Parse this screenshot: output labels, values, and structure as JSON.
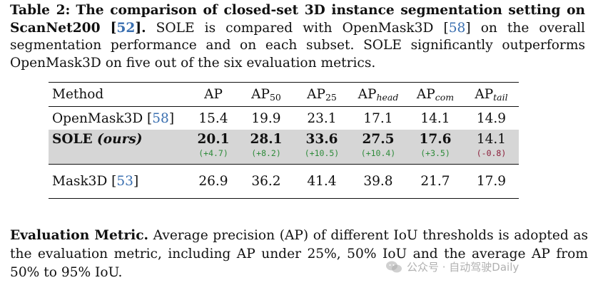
{
  "caption": {
    "label": "Table 2:",
    "title": "The comparison of closed-set 3D instance segmentation setting on ScanNet200",
    "title_cite": "52",
    "text_a": "SOLE is compared with OpenMask3D",
    "text_cite": "58",
    "text_b": "on the overall segmentation performance and on each subset. SOLE significantly outperforms OpenMask3D on five out of the six evaluation metrics."
  },
  "table": {
    "headers": {
      "method": "Method",
      "ap": "AP",
      "ap50_base": "AP",
      "ap50_sub": "50",
      "ap25_base": "AP",
      "ap25_sub": "25",
      "aphead_base": "AP",
      "aphead_sub": "head",
      "apcom_base": "AP",
      "apcom_sub": "com",
      "aptail_base": "AP",
      "aptail_sub": "tail"
    },
    "rows": {
      "openmask": {
        "name": "OpenMask3D",
        "cite": "58",
        "values": [
          "15.4",
          "19.9",
          "23.1",
          "17.1",
          "14.1",
          "14.9"
        ]
      },
      "sole": {
        "name": "SOLE",
        "tag": "(ours)",
        "values": [
          "20.1",
          "28.1",
          "33.6",
          "27.5",
          "17.6",
          "14.1"
        ],
        "deltas": [
          "(+4.7)",
          "(+8.2)",
          "(+10.5)",
          "(+10.4)",
          "(+3.5)",
          "(-0.8)"
        ]
      },
      "mask3d": {
        "name": "Mask3D",
        "cite": "53",
        "values": [
          "26.9",
          "36.2",
          "41.4",
          "39.8",
          "21.7",
          "17.9"
        ]
      }
    }
  },
  "paragraph": {
    "heading": "Evaluation Metric.",
    "text": "Average precision (AP) of different IoU thresholds is adopted as the evaluation metric, including AP under 25%, 50% IoU and the average AP from 50% to 95% IoU."
  },
  "watermark": {
    "text": "公众号 · 自动驾驶Daily"
  },
  "colors": {
    "cite": "#3a6fb0",
    "highlight_row": "#d6d6d6",
    "positive_delta": "#2e8b3a",
    "negative_delta": "#8b1e3a"
  }
}
